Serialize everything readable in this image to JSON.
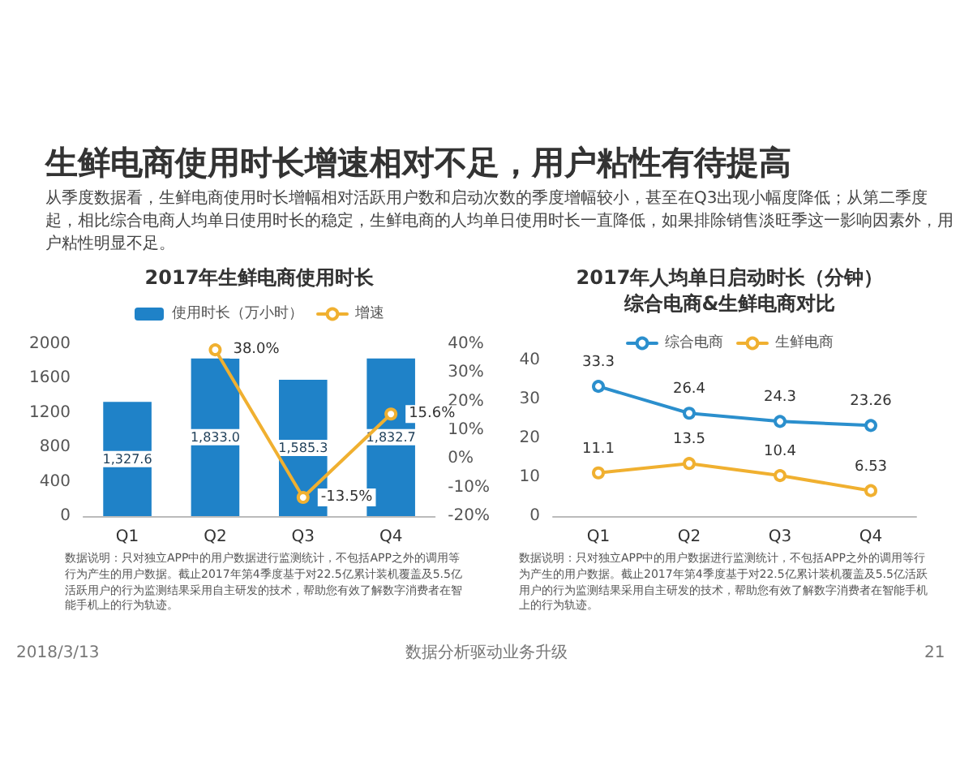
{
  "chart_data": [
    {
      "type": "bar",
      "title": "2017年生鲜电商使用时长",
      "categories": [
        "Q1",
        "Q2",
        "Q3",
        "Q4"
      ],
      "series": [
        {
          "name": "使用时长（万小时）",
          "color": "#1f82c8",
          "values": [
            1327.6,
            1833.0,
            1585.3,
            1832.7
          ],
          "value_labels": [
            "1,327.6",
            "1,833.0",
            "1,585.3",
            "1,832.7"
          ]
        },
        {
          "name": "增速",
          "type": "line",
          "axis": "y2",
          "color": "#f0b030",
          "values": [
            null,
            38.0,
            -13.5,
            15.6
          ],
          "value_labels": [
            null,
            "38.0%",
            "-13.5%",
            "15.6%"
          ]
        }
      ],
      "ylim": [
        0,
        2000
      ],
      "yticks": [
        0,
        400,
        800,
        1200,
        1600,
        2000
      ],
      "y2lim": [
        -20,
        40
      ],
      "y2ticks": [
        {
          "value": -20,
          "label": "-20%"
        },
        {
          "value": -10,
          "label": "-10%"
        },
        {
          "value": 0,
          "label": "0%"
        },
        {
          "value": 10,
          "label": "10%"
        },
        {
          "value": 20,
          "label": "20%"
        },
        {
          "value": 30,
          "label": "30%"
        },
        {
          "value": 40,
          "label": "40%"
        }
      ],
      "legend": "top",
      "grid": false,
      "marker": "circle",
      "annotations": [
        "生鲜电商使用时长增速相对不足，用户粘性有待提高",
        "从季度数据看，生鲜电商使用时长增幅相对活跃用户数和启动次数的季度增幅较小，甚至在Q3出现小幅度降低；从第二季度起，相比综合电商人均单日使用时长的稳定，生鲜电商的人均单日使用时长一直降低，如果排除销售淡旺季这一影响因素外，用户粘性明显不足。",
        "数据说明：只对独立APP中的用户数据进行监测统计，不包括APP之外的调用等行为产生的用户数据。截止2017年第4季度基于对22.5亿累计装机覆盖及5.5亿活跃用户的行为监测结果采用自主研发的技术，帮助您有效了解数字消费者在智能手机上的行为轨迹。",
        "2018/3/13",
        "数据分析驱动业务升级",
        "21"
      ]
    },
    {
      "type": "line",
      "title": "2017年人均单日启动时长（分钟）",
      "subtitle": "综合电商&生鲜电商对比",
      "categories": [
        "Q1",
        "Q2",
        "Q3",
        "Q4"
      ],
      "series": [
        {
          "name": "综合电商",
          "color": "#2b8fcd",
          "values": [
            33.3,
            26.4,
            24.3,
            23.26
          ]
        },
        {
          "name": "生鲜电商",
          "color": "#f0b030",
          "values": [
            11.1,
            13.5,
            10.4,
            6.53
          ]
        }
      ],
      "ylim": [
        0,
        40
      ],
      "yticks": [
        0,
        10,
        20,
        30,
        40
      ],
      "data_labels": true,
      "legend": "top",
      "grid": false,
      "marker": "circle",
      "line_style": "solid",
      "annotations": [
        "数据说明：只对独立APP中的用户数据进行监测统计，不包括APP之外的调用等行为产生的用户数据。截止2017年第4季度基于对22.5亿累计装机覆盖及5.5亿活跃用户的行为监测结果采用自主研发的技术，帮助您有效了解数字消费者在智能手机上的行为轨迹。"
      ]
    }
  ]
}
